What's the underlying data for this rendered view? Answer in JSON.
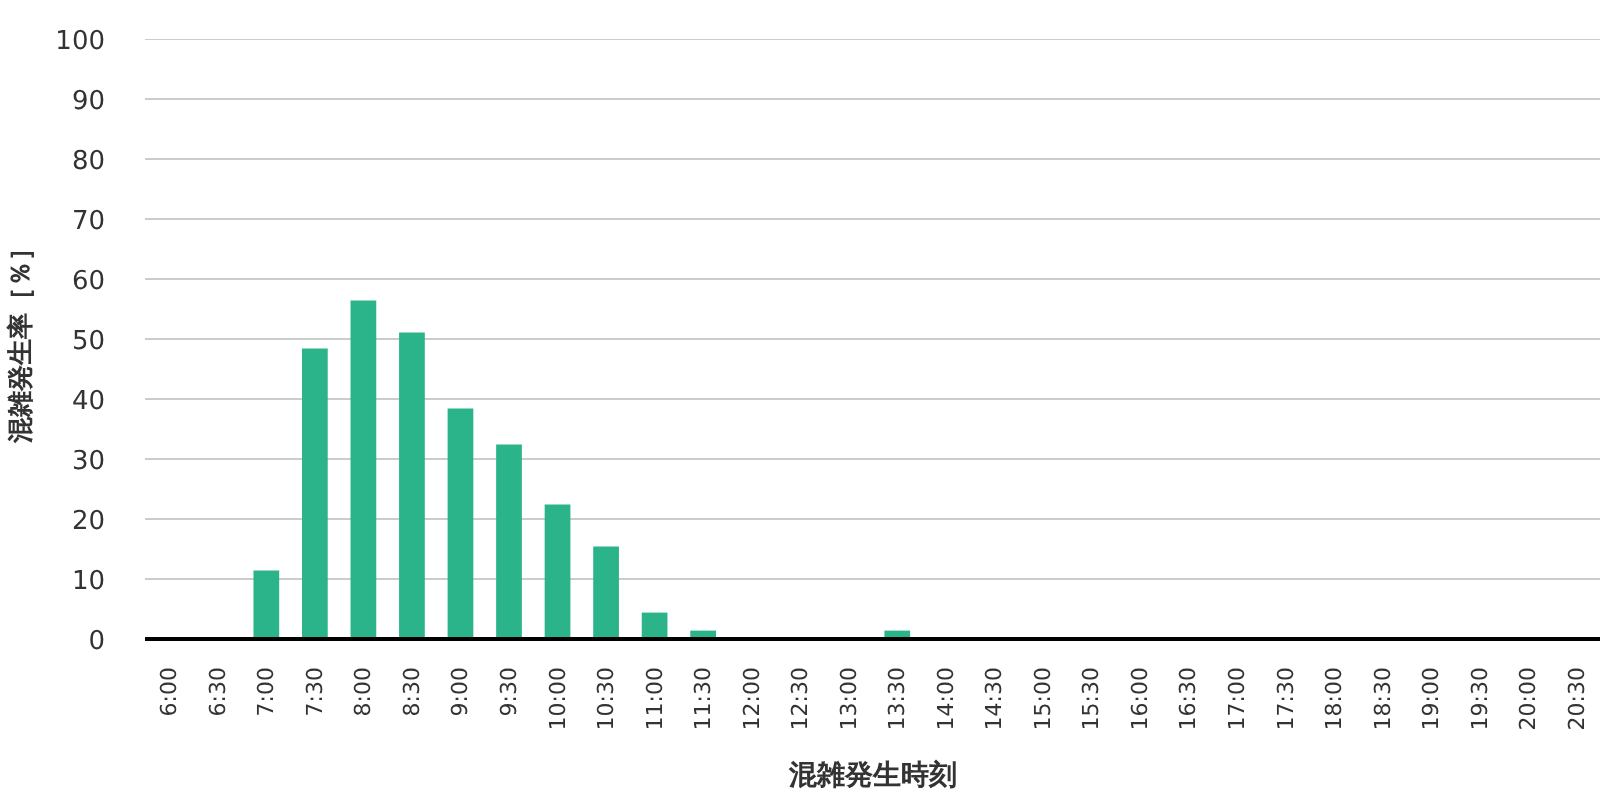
{
  "chart_data": {
    "type": "bar",
    "categories": [
      "6:00",
      "6:30",
      "7:00",
      "7:30",
      "8:00",
      "8:30",
      "9:00",
      "9:30",
      "10:00",
      "10:30",
      "11:00",
      "11:30",
      "12:00",
      "12:30",
      "13:00",
      "13:30",
      "14:00",
      "14:30",
      "15:00",
      "15:30",
      "16:00",
      "16:30",
      "17:00",
      "17:30",
      "18:00",
      "18:30",
      "19:00",
      "19:30",
      "20:00",
      "20:30"
    ],
    "values": [
      0,
      0,
      11.4,
      48.4,
      56.4,
      51.1,
      38.4,
      32.4,
      22.4,
      15.4,
      4.4,
      1.4,
      0,
      0,
      0,
      1.4,
      0,
      0,
      0,
      0,
      0,
      0,
      0,
      0,
      0,
      0,
      0,
      0,
      0,
      0
    ],
    "color": "#2bb389",
    "ylim": [
      0,
      100
    ],
    "yticks": [
      0,
      10,
      20,
      30,
      40,
      50,
      60,
      70,
      80,
      90,
      100
    ],
    "grid": "y",
    "xlabel": "混雑発生時刻",
    "ylabel": "混雑発生率［％］"
  }
}
